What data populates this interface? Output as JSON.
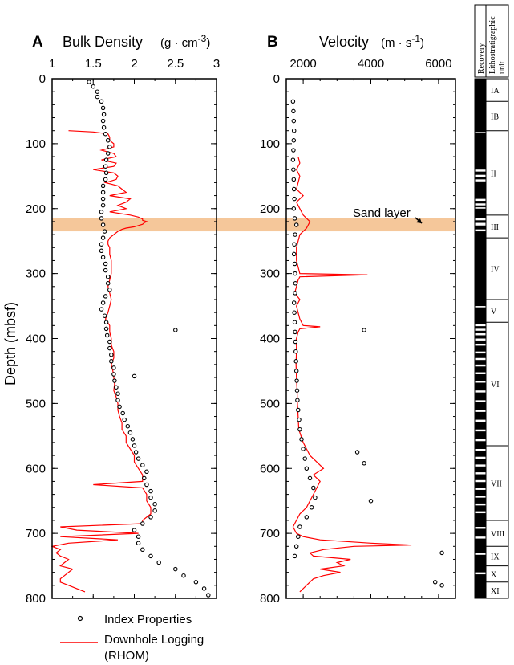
{
  "figure": {
    "y_axis_label": "Depth (mbsf)",
    "highlight_color": "#f5c79a",
    "logging_color": "#ff0000",
    "point_color": "#000000",
    "sand_label": "Sand layer",
    "legend": {
      "index_label": "Index Properties",
      "logging_label_1": "Downhole Logging",
      "logging_label_2": "(RHOM)"
    },
    "strat": {
      "recovery_header": "Recovery",
      "litho_header_1": "Lithostratigraphic",
      "litho_header_2": "unit"
    }
  },
  "chart_data": [
    {
      "type": "line",
      "panel": "A",
      "title": "Bulk Density",
      "unit_pre": "(g · cm",
      "unit_sup": "-3",
      "unit_post": ")",
      "xlabel": "Bulk Density (g · cm-3)",
      "ylabel": "Depth (mbsf)",
      "xlim": [
        1,
        3
      ],
      "ylim": [
        0,
        800
      ],
      "y_reversed": true,
      "xticks": [
        "1",
        "1.5",
        "2",
        "2.5",
        "3"
      ],
      "yticks": [
        "0",
        "100",
        "200",
        "300",
        "400",
        "500",
        "600",
        "700",
        "800"
      ],
      "series": [
        {
          "name": "Index Properties",
          "mark": "scatter",
          "depth": [
            5,
            12,
            20,
            28,
            35,
            45,
            55,
            65,
            75,
            85,
            95,
            105,
            115,
            125,
            135,
            145,
            155,
            165,
            175,
            185,
            195,
            205,
            215,
            225,
            235,
            245,
            255,
            265,
            275,
            285,
            295,
            305,
            315,
            325,
            335,
            345,
            355,
            365,
            375,
            385,
            395,
            405,
            415,
            425,
            435,
            445,
            455,
            465,
            475,
            485,
            495,
            505,
            515,
            525,
            535,
            545,
            555,
            565,
            575,
            585,
            595,
            605,
            615,
            625,
            635,
            645,
            655,
            665,
            675,
            685,
            695,
            705,
            715,
            725,
            735,
            745,
            755,
            765,
            775,
            785,
            795,
            387,
            458
          ],
          "values": [
            1.45,
            1.5,
            1.55,
            1.55,
            1.6,
            1.62,
            1.63,
            1.62,
            1.63,
            1.65,
            1.68,
            1.7,
            1.68,
            1.66,
            1.65,
            1.66,
            1.65,
            1.62,
            1.62,
            1.62,
            1.62,
            1.6,
            1.6,
            1.62,
            1.64,
            1.62,
            1.6,
            1.6,
            1.62,
            1.65,
            1.65,
            1.68,
            1.68,
            1.7,
            1.65,
            1.62,
            1.6,
            1.64,
            1.66,
            1.66,
            1.67,
            1.7,
            1.7,
            1.72,
            1.72,
            1.75,
            1.75,
            1.76,
            1.78,
            1.8,
            1.8,
            1.82,
            1.86,
            1.88,
            1.92,
            1.95,
            1.98,
            2.0,
            2.02,
            2.05,
            2.1,
            2.15,
            2.12,
            2.15,
            2.2,
            2.2,
            2.25,
            2.25,
            2.2,
            2.1,
            2.0,
            2.05,
            2.05,
            2.1,
            2.2,
            2.3,
            2.5,
            2.6,
            2.75,
            2.85,
            2.9,
            2.5,
            2.0
          ]
        },
        {
          "name": "Downhole Logging (RHOM)",
          "mark": "line",
          "depth": [
            80,
            82,
            85,
            90,
            95,
            100,
            105,
            110,
            115,
            120,
            125,
            130,
            135,
            140,
            145,
            150,
            155,
            160,
            165,
            170,
            175,
            180,
            185,
            190,
            195,
            200,
            205,
            210,
            213,
            216,
            218,
            220,
            222,
            224,
            226,
            228,
            230,
            232,
            235,
            240,
            245,
            250,
            255,
            260,
            270,
            280,
            290,
            300,
            310,
            320,
            330,
            340,
            350,
            360,
            370,
            380,
            390,
            400,
            410,
            420,
            430,
            440,
            450,
            460,
            470,
            480,
            490,
            500,
            510,
            520,
            530,
            540,
            550,
            560,
            570,
            580,
            590,
            600,
            610,
            620,
            625,
            630,
            640,
            650,
            660,
            670,
            680,
            685,
            690,
            695,
            700,
            705,
            710,
            715,
            720,
            725,
            730,
            735,
            740,
            745,
            750,
            755,
            760,
            765,
            770,
            775,
            780,
            785,
            790
          ],
          "values": [
            1.2,
            1.5,
            1.68,
            1.7,
            1.7,
            1.75,
            1.75,
            1.6,
            1.75,
            1.78,
            1.6,
            1.78,
            1.75,
            1.5,
            1.75,
            1.8,
            1.78,
            1.65,
            1.8,
            1.85,
            1.9,
            1.7,
            1.95,
            1.9,
            1.8,
            1.9,
            1.7,
            1.95,
            2.05,
            2.1,
            2.1,
            2.15,
            2.12,
            2.1,
            2.05,
            2.0,
            1.9,
            1.85,
            1.8,
            1.75,
            1.7,
            1.68,
            1.68,
            1.7,
            1.7,
            1.72,
            1.72,
            1.72,
            1.7,
            1.68,
            1.7,
            1.72,
            1.7,
            1.68,
            1.65,
            1.7,
            1.7,
            1.72,
            1.72,
            1.75,
            1.75,
            1.72,
            1.74,
            1.75,
            1.76,
            1.75,
            1.78,
            1.8,
            1.8,
            1.82,
            1.85,
            1.85,
            1.9,
            1.9,
            1.95,
            2.0,
            2.0,
            2.05,
            2.1,
            2.1,
            1.5,
            2.1,
            2.15,
            2.15,
            2.2,
            2.2,
            2.1,
            2.1,
            1.1,
            1.3,
            2.05,
            1.1,
            1.8,
            1.2,
            1.0,
            1.1,
            1.05,
            1.1,
            1.2,
            1.15,
            1.1,
            1.25,
            1.2,
            1.15,
            1.1,
            1.1,
            1.2,
            1.3,
            1.4
          ]
        }
      ]
    },
    {
      "type": "line",
      "panel": "B",
      "title": "Velocity",
      "unit_pre": "(m · s",
      "unit_sup": "-1",
      "unit_post": ")",
      "xlabel": "Velocity (m · s-1)",
      "ylabel": "Depth (mbsf)",
      "xlim": [
        1500,
        6500
      ],
      "ylim": [
        0,
        800
      ],
      "y_reversed": true,
      "xticks": [
        "2000",
        "4000",
        "6000"
      ],
      "yticks": [
        "0",
        "100",
        "200",
        "300",
        "400",
        "500",
        "600",
        "700",
        "800"
      ],
      "annotation": {
        "text": "Sand layer",
        "depth": 220,
        "value": 5700
      },
      "highlight_band": [
        215,
        235
      ],
      "series": [
        {
          "name": "Index Properties",
          "mark": "scatter",
          "depth": [
            35,
            50,
            65,
            80,
            95,
            110,
            125,
            140,
            155,
            170,
            185,
            200,
            215,
            225,
            240,
            255,
            270,
            285,
            300,
            315,
            330,
            345,
            360,
            375,
            390,
            405,
            420,
            435,
            450,
            465,
            480,
            495,
            510,
            525,
            540,
            555,
            570,
            585,
            600,
            615,
            630,
            645,
            660,
            675,
            690,
            705,
            720,
            735,
            387,
            592,
            575,
            650,
            730,
            775,
            780
          ],
          "values": [
            1700,
            1710,
            1720,
            1730,
            1720,
            1710,
            1700,
            1710,
            1720,
            1730,
            1740,
            1720,
            1750,
            1800,
            1760,
            1740,
            1730,
            1750,
            1760,
            1770,
            1760,
            1730,
            1740,
            1750,
            1760,
            1770,
            1780,
            1790,
            1800,
            1810,
            1820,
            1830,
            1850,
            1880,
            1900,
            1950,
            2000,
            2050,
            2100,
            2200,
            2300,
            2350,
            2250,
            2100,
            1900,
            1850,
            1800,
            1750,
            3800,
            3800,
            3600,
            4000,
            6100,
            5900,
            6100
          ]
        },
        {
          "name": "Downhole Logging (RHOM)",
          "mark": "line",
          "depth": [
            120,
            130,
            140,
            150,
            160,
            170,
            180,
            190,
            200,
            210,
            215,
            220,
            225,
            230,
            235,
            240,
            250,
            260,
            270,
            280,
            290,
            300,
            302,
            305,
            310,
            320,
            330,
            340,
            350,
            360,
            370,
            380,
            382,
            385,
            390,
            400,
            420,
            440,
            460,
            480,
            500,
            520,
            540,
            560,
            570,
            580,
            590,
            600,
            610,
            620,
            630,
            640,
            650,
            660,
            670,
            680,
            690,
            700,
            705,
            710,
            715,
            718,
            720,
            725,
            730,
            735,
            740,
            745,
            750,
            755,
            760,
            765,
            770,
            780,
            790
          ],
          "values": [
            1850,
            1900,
            1800,
            1900,
            1850,
            1800,
            2000,
            1800,
            1900,
            2000,
            2100,
            2200,
            2150,
            2100,
            2000,
            1900,
            1850,
            1800,
            1800,
            1800,
            1850,
            1900,
            3900,
            1900,
            1850,
            1800,
            1750,
            1900,
            1800,
            1850,
            1900,
            2000,
            2500,
            1900,
            1850,
            1800,
            1800,
            1790,
            1800,
            1820,
            1830,
            1850,
            1870,
            2000,
            2100,
            2200,
            2400,
            2600,
            2300,
            2500,
            2400,
            2300,
            2200,
            2100,
            1900,
            1800,
            1700,
            1800,
            2000,
            2500,
            4000,
            5200,
            3500,
            2600,
            2200,
            2300,
            3400,
            3000,
            3200,
            2500,
            3100,
            2600,
            2300,
            2100,
            1900
          ]
        }
      ]
    }
  ],
  "strat_units": [
    {
      "label": "IA",
      "top": 0,
      "bottom": 35
    },
    {
      "label": "IB",
      "top": 35,
      "bottom": 80
    },
    {
      "label": "II",
      "top": 80,
      "bottom": 210
    },
    {
      "label": "III",
      "top": 210,
      "bottom": 245
    },
    {
      "label": "IV",
      "top": 245,
      "bottom": 340
    },
    {
      "label": "V",
      "top": 340,
      "bottom": 375
    },
    {
      "label": "VI",
      "top": 375,
      "bottom": 565
    },
    {
      "label": "VII",
      "top": 565,
      "bottom": 680
    },
    {
      "label": "VIII",
      "top": 680,
      "bottom": 720
    },
    {
      "label": "IX",
      "top": 720,
      "bottom": 750
    },
    {
      "label": "X",
      "top": 750,
      "bottom": 775
    },
    {
      "label": "XI",
      "top": 775,
      "bottom": 800
    }
  ],
  "recovery_gaps": [
    [
      82,
      84
    ],
    [
      140,
      143
    ],
    [
      148,
      151
    ],
    [
      155,
      158
    ],
    [
      185,
      188
    ],
    [
      192,
      195
    ],
    [
      198,
      200
    ],
    [
      215,
      218
    ],
    [
      222,
      226
    ],
    [
      232,
      235
    ],
    [
      350,
      352
    ],
    [
      378,
      381
    ],
    [
      385,
      388
    ],
    [
      392,
      395
    ],
    [
      400,
      403
    ],
    [
      408,
      411
    ],
    [
      420,
      423
    ],
    [
      430,
      433
    ],
    [
      440,
      443
    ],
    [
      452,
      455
    ],
    [
      465,
      468
    ],
    [
      480,
      483
    ],
    [
      495,
      498
    ],
    [
      510,
      513
    ],
    [
      525,
      528
    ],
    [
      540,
      543
    ],
    [
      555,
      558
    ],
    [
      570,
      573
    ],
    [
      582,
      585
    ],
    [
      594,
      597
    ],
    [
      606,
      609
    ],
    [
      618,
      621
    ],
    [
      630,
      633
    ],
    [
      642,
      645
    ],
    [
      654,
      657
    ],
    [
      666,
      669
    ],
    [
      690,
      693
    ],
    [
      705,
      708
    ],
    [
      730,
      733
    ],
    [
      760,
      763
    ]
  ]
}
